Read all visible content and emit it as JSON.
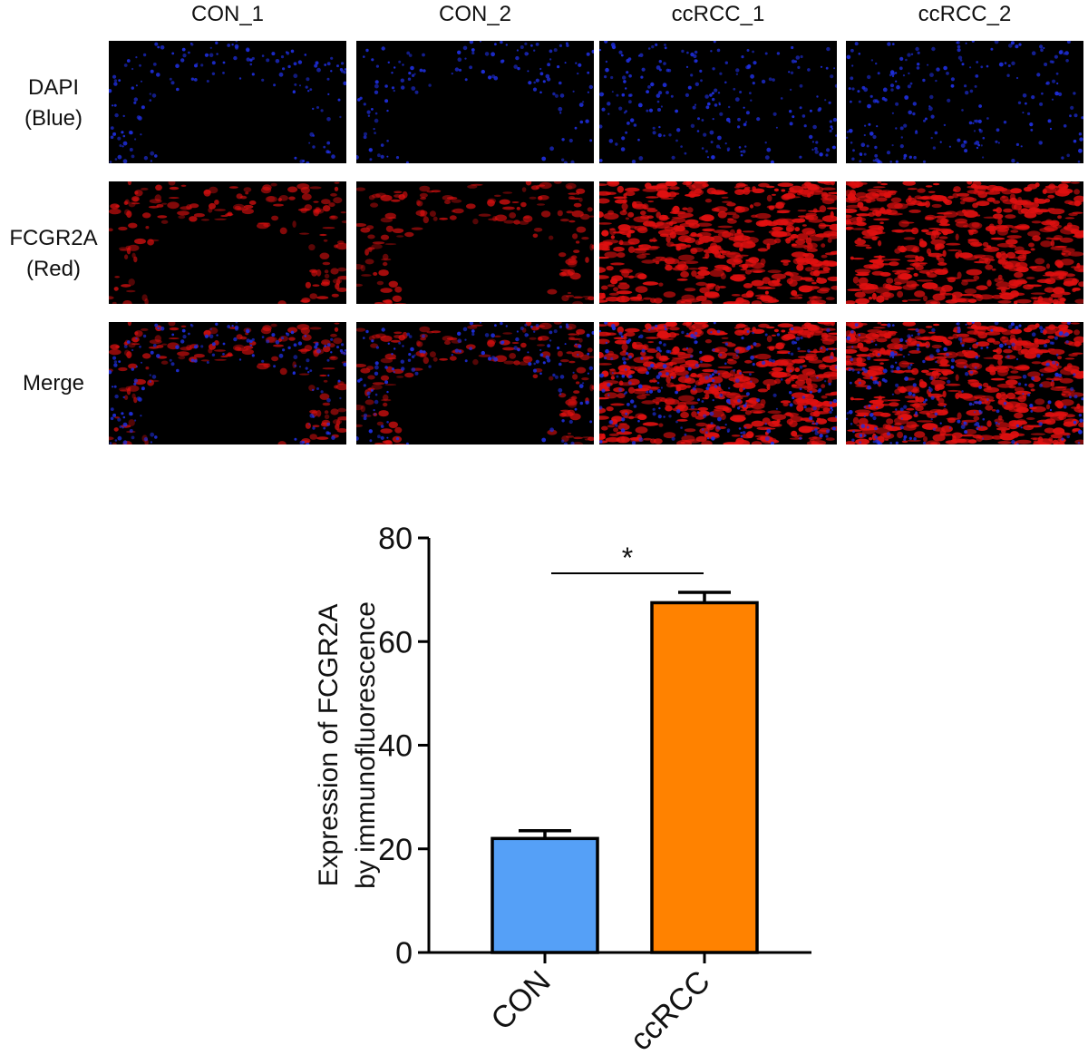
{
  "micrograph_grid": {
    "columns": [
      "CON_1",
      "CON_2",
      "ccRCC_1",
      "ccRCC_2"
    ],
    "rows": [
      {
        "label_line1": "DAPI",
        "label_line2": "(Blue)",
        "channel": "blue"
      },
      {
        "label_line1": "FCGR2A",
        "label_line2": "(Red)",
        "channel": "red"
      },
      {
        "label_line1": "Merge",
        "label_line2": "",
        "channel": "merge"
      }
    ],
    "colors": {
      "dapi": "#1f2fe0",
      "fcgr2a": "#e01010",
      "background": "#000000"
    }
  },
  "chart_data": {
    "type": "bar",
    "categories": [
      "CON",
      "ccRCC"
    ],
    "values": [
      22,
      67.5
    ],
    "errors": [
      1.5,
      2.0
    ],
    "ylabel_line1": "Expression of FCGR2A",
    "ylabel_line2": "by immunofluorescence",
    "xlabel": "",
    "ylim": [
      0,
      80
    ],
    "yticks": [
      0,
      20,
      40,
      60,
      80
    ],
    "significance": {
      "between": [
        "CON",
        "ccRCC"
      ],
      "label": "*"
    },
    "bar_colors": [
      "#55a0f7",
      "#ff8200"
    ],
    "grid": false
  }
}
